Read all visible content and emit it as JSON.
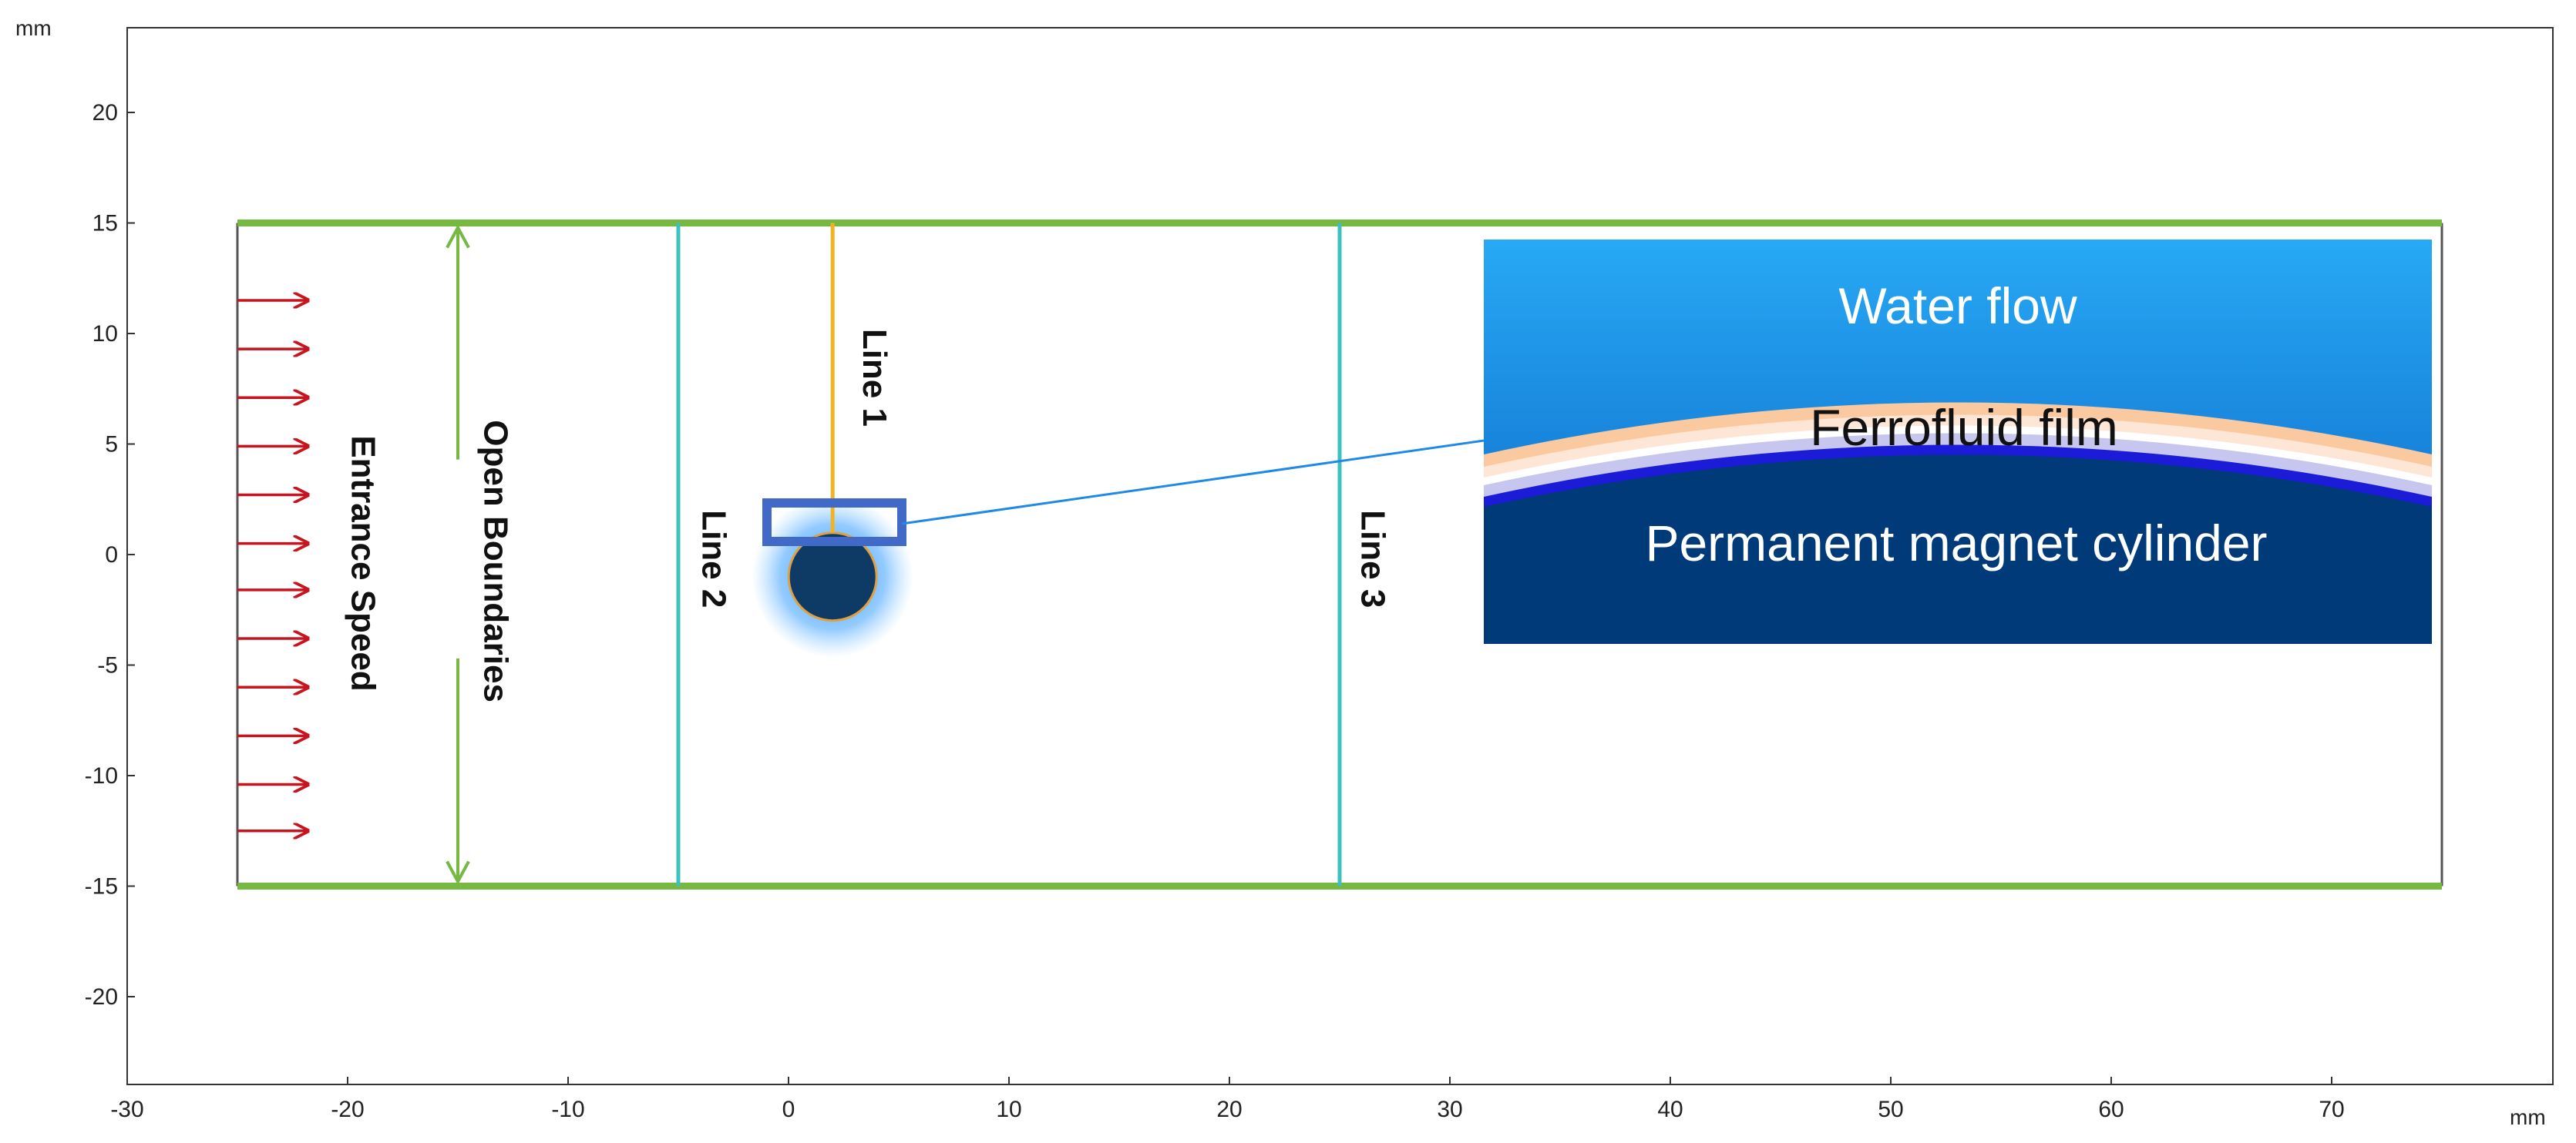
{
  "axes": {
    "x_unit": "mm",
    "y_unit": "mm",
    "x_ticks": [
      -30,
      -20,
      -10,
      0,
      10,
      20,
      30,
      40,
      50,
      60,
      70
    ],
    "y_ticks": [
      20,
      15,
      10,
      5,
      0,
      -5,
      -10,
      -15,
      -20
    ],
    "x_range": [
      -30,
      80
    ],
    "y_range": [
      -24,
      24
    ]
  },
  "domain": {
    "x": [
      -25,
      75
    ],
    "y": [
      -15,
      15
    ]
  },
  "lines": {
    "line1": {
      "label": "Line 1",
      "x": 2,
      "y": [
        1,
        15
      ]
    },
    "line2": {
      "label": "Line 2",
      "x": -5,
      "y": [
        -15,
        15
      ]
    },
    "line3": {
      "label": "Line 3",
      "x": 25,
      "y": [
        -15,
        15
      ]
    }
  },
  "labels": {
    "entrance_speed": "Entrance Speed",
    "open_boundaries": "Open Boundaries"
  },
  "magnet": {
    "center_x": 2,
    "center_y": -1
  },
  "inlet_arrows_y": [
    11.5,
    9.3,
    7.1,
    4.9,
    2.7,
    0.5,
    -1.6,
    -3.8,
    -6,
    -8.2,
    -10.4,
    -12.5
  ],
  "inset": {
    "water_flow": "Water flow",
    "ferrofluid_film": "Ferrofluid film",
    "magnet_cylinder": "Permanent magnet cylinder"
  },
  "colors": {
    "open_boundary": "#77b843",
    "inlet_arrow": "#c8141e",
    "line1": "#f0b323",
    "line2": "#3cc0c0",
    "line3": "#3cc0c0",
    "zoom_box": "#4169c8",
    "leader_line": "#1f8ae6",
    "magnet": "#0e3a66",
    "water_top": "#27a9f5",
    "water_bottom": "#0b62c4",
    "inset_magnet": "#013a78"
  }
}
